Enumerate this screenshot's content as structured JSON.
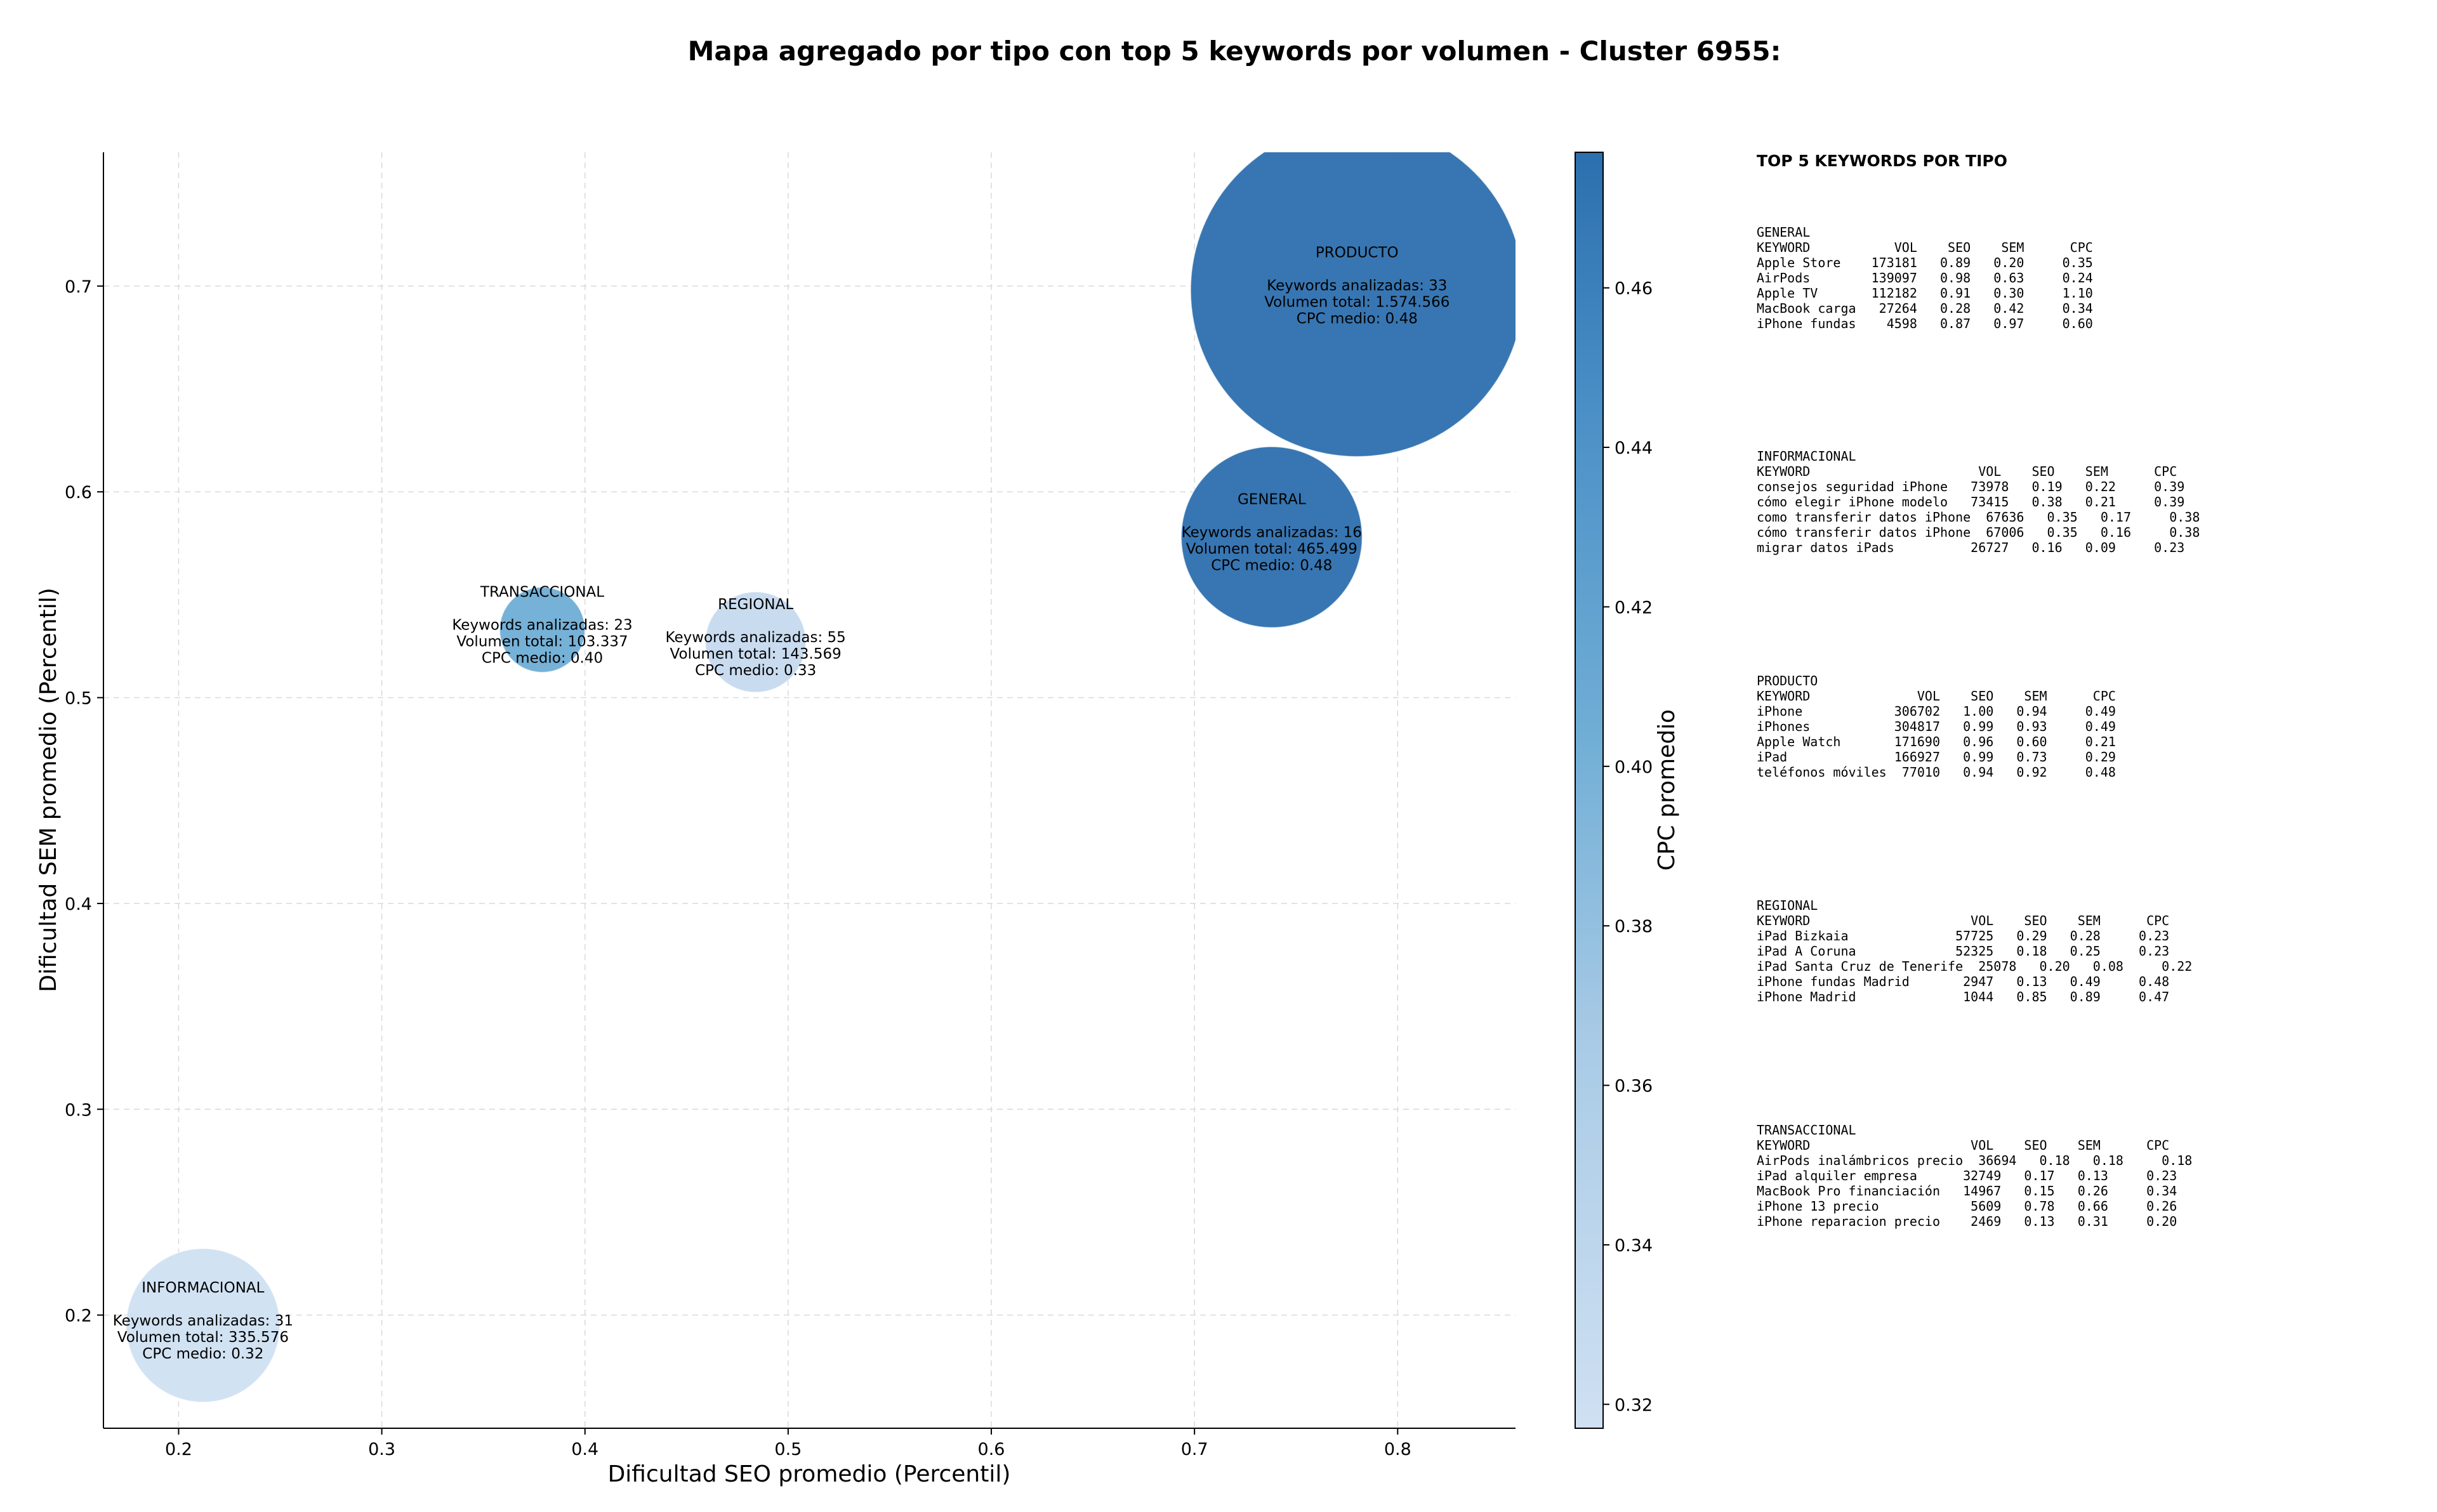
{
  "chart_data": {
    "type": "scatter",
    "subtype": "bubble",
    "title": "Mapa agregado por tipo con top 5 keywords por volumen - Cluster 6955:",
    "xlabel": "Dificultad SEO promedio (Percentil)",
    "ylabel": "Dificultad SEM promedio (Percentil)",
    "colorbar_label": "CPC promedio",
    "xlim": [
      0.163,
      0.858
    ],
    "ylim": [
      0.145,
      0.765
    ],
    "xticks": [
      "0.2",
      "0.3",
      "0.4",
      "0.5",
      "0.6",
      "0.7",
      "0.8"
    ],
    "xtick_values": [
      0.2,
      0.3,
      0.4,
      0.5,
      0.6,
      0.7,
      0.8
    ],
    "yticks": [
      "0.2",
      "0.3",
      "0.4",
      "0.5",
      "0.6",
      "0.7"
    ],
    "ytick_values": [
      0.2,
      0.3,
      0.4,
      0.5,
      0.6,
      0.7
    ],
    "colorbar_ticks": [
      "0.32",
      "0.34",
      "0.36",
      "0.38",
      "0.40",
      "0.42",
      "0.44",
      "0.46"
    ],
    "colorbar_tick_values": [
      0.32,
      0.34,
      0.36,
      0.38,
      0.4,
      0.42,
      0.44,
      0.46
    ],
    "colorbar_range": [
      0.317,
      0.477
    ],
    "grid": true,
    "bubbles": [
      {
        "name": "PRODUCTO",
        "x": 0.78,
        "y": 0.698,
        "size": 1574566,
        "cpc": 0.48,
        "color": "#2c6fae",
        "keywords_line": "Keywords analizadas: 33",
        "volume_line": "Volumen total: 1.574.566",
        "cpc_line": "CPC medio: 0.48"
      },
      {
        "name": "GENERAL",
        "x": 0.738,
        "y": 0.578,
        "size": 465499,
        "cpc": 0.48,
        "color": "#2c6fae",
        "keywords_line": "Keywords analizadas: 16",
        "volume_line": "Volumen total: 465.499",
        "cpc_line": "CPC medio: 0.48"
      },
      {
        "name": "TRANSACCIONAL",
        "x": 0.379,
        "y": 0.533,
        "size": 103337,
        "cpc": 0.4,
        "color": "#6fadd5",
        "keywords_line": "Keywords analizadas: 23",
        "volume_line": "Volumen total: 103.337",
        "cpc_line": "CPC medio: 0.40"
      },
      {
        "name": "REGIONAL",
        "x": 0.484,
        "y": 0.527,
        "size": 143569,
        "cpc": 0.33,
        "color": "#c6d9ee",
        "keywords_line": "Keywords analizadas: 55",
        "volume_line": "Volumen total: 143.569",
        "cpc_line": "CPC medio: 0.33"
      },
      {
        "name": "INFORMACIONAL",
        "x": 0.212,
        "y": 0.195,
        "size": 335576,
        "cpc": 0.32,
        "color": "#cfe0f2",
        "keywords_line": "Keywords analizadas: 31",
        "volume_line": "Volumen total: 335.576",
        "cpc_line": "CPC medio: 0.32"
      }
    ]
  },
  "side_panel": {
    "title": "TOP 5 KEYWORDS POR TIPO",
    "groups": [
      {
        "name": "GENERAL",
        "lines": [
          "KEYWORD           VOL    SEO    SEM      CPC",
          "Apple Store    173181   0.89   0.20     0.35",
          "AirPods        139097   0.98   0.63     0.24",
          "Apple TV       112182   0.91   0.30     1.10",
          "MacBook carga   27264   0.28   0.42     0.34",
          "iPhone fundas    4598   0.87   0.97     0.60"
        ]
      },
      {
        "name": "INFORMACIONAL",
        "lines": [
          "KEYWORD                      VOL    SEO    SEM      CPC",
          "consejos seguridad iPhone   73978   0.19   0.22     0.39",
          "cómo elegir iPhone modelo   73415   0.38   0.21     0.39",
          "como transferir datos iPhone  67636   0.35   0.17     0.38",
          "cómo transferir datos iPhone  67006   0.35   0.16     0.38",
          "migrar datos iPads          26727   0.16   0.09     0.23"
        ]
      },
      {
        "name": "PRODUCTO",
        "lines": [
          "KEYWORD              VOL    SEO    SEM      CPC",
          "iPhone            306702   1.00   0.94     0.49",
          "iPhones           304817   0.99   0.93     0.49",
          "Apple Watch       171690   0.96   0.60     0.21",
          "iPad              166927   0.99   0.73     0.29",
          "teléfonos móviles  77010   0.94   0.92     0.48"
        ]
      },
      {
        "name": "REGIONAL",
        "lines": [
          "KEYWORD                     VOL    SEO    SEM      CPC",
          "iPad Bizkaia              57725   0.29   0.28     0.23",
          "iPad A Coruna             52325   0.18   0.25     0.23",
          "iPad Santa Cruz de Tenerife  25078   0.20   0.08     0.22",
          "iPhone fundas Madrid       2947   0.13   0.49     0.48",
          "iPhone Madrid              1044   0.85   0.89     0.47"
        ]
      },
      {
        "name": "TRANSACCIONAL",
        "lines": [
          "KEYWORD                     VOL    SEO    SEM      CPC",
          "AirPods inalámbricos precio  36694   0.18   0.18     0.18",
          "iPad alquiler empresa      32749   0.17   0.13     0.23",
          "MacBook Pro financiación   14967   0.15   0.26     0.34",
          "iPhone 13 precio            5609   0.78   0.66     0.26",
          "iPhone reparacion precio    2469   0.13   0.31     0.20"
        ]
      }
    ]
  }
}
